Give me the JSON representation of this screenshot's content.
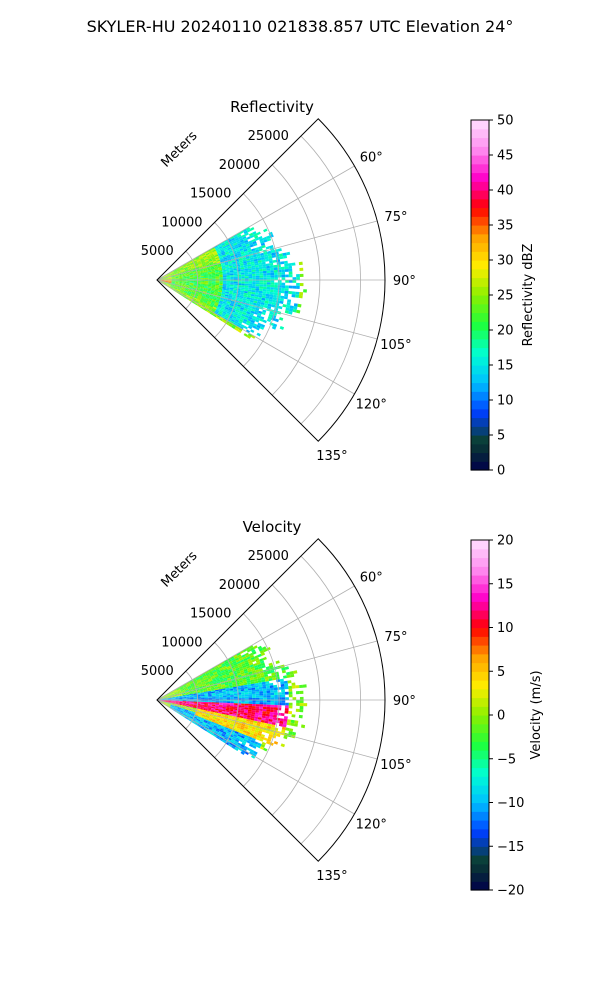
{
  "figure": {
    "suptitle": "SKYLER-HU  20240110  021838.857 UTC Elevation 24°"
  },
  "chart_data": [
    {
      "type": "heatmap",
      "subtype": "polar-sector",
      "title": "Reflectivity",
      "range_label": "Meters",
      "range_ticks": [
        5000,
        10000,
        15000,
        20000,
        25000
      ],
      "range_tick_labels": [
        "5000",
        "10000",
        "15000",
        "20000",
        "25000"
      ],
      "rmax": 28000,
      "azimuth_ticks": [
        60,
        75,
        90,
        105,
        120,
        135
      ],
      "azimuth_tick_labels": [
        "60°",
        "75°",
        "90°",
        "105°",
        "120°",
        "135°"
      ],
      "azimuth_range": [
        45,
        135
      ],
      "grid": true,
      "colorbar": {
        "label": "Reflectivity dBZ",
        "vmin": 0,
        "vmax": 50,
        "ticks": [
          0,
          5,
          10,
          15,
          20,
          25,
          30,
          35,
          40,
          45,
          50
        ],
        "tick_labels": [
          "0",
          "5",
          "10",
          "15",
          "20",
          "25",
          "30",
          "35",
          "40",
          "45",
          "50"
        ]
      },
      "colormap_stops": [
        "#00004a",
        "#0a4030",
        "#003fff",
        "#00bfff",
        "#00ffd2",
        "#1eff3c",
        "#8cf000",
        "#ffee00",
        "#ffa000",
        "#ff0000",
        "#ff00c8",
        "#ff8cf0",
        "#ffe0ff"
      ],
      "data_extent": {
        "azimuth": [
          60,
          122
        ],
        "range_m": [
          0,
          17500
        ]
      },
      "reflectivity_regions_dBZ": [
        {
          "azimuth": [
            60,
            120
          ],
          "range_m": [
            8000,
            17500
          ],
          "value": 15
        },
        {
          "azimuth": [
            75,
            115
          ],
          "range_m": [
            2000,
            10000
          ],
          "value": 22
        },
        {
          "azimuth": [
            88,
            102
          ],
          "range_m": [
            0,
            4000
          ],
          "value": 33
        }
      ]
    },
    {
      "type": "heatmap",
      "subtype": "polar-sector",
      "title": "Velocity",
      "range_label": "Meters",
      "range_ticks": [
        5000,
        10000,
        15000,
        20000,
        25000
      ],
      "range_tick_labels": [
        "5000",
        "10000",
        "15000",
        "20000",
        "25000"
      ],
      "rmax": 28000,
      "azimuth_ticks": [
        60,
        75,
        90,
        105,
        120,
        135
      ],
      "azimuth_tick_labels": [
        "60°",
        "75°",
        "90°",
        "105°",
        "120°",
        "135°"
      ],
      "azimuth_range": [
        45,
        135
      ],
      "grid": true,
      "colorbar": {
        "label": "Velocity (m/s)",
        "vmin": -20,
        "vmax": 20,
        "ticks": [
          -20,
          -15,
          -10,
          -5,
          0,
          5,
          10,
          15,
          20
        ],
        "tick_labels": [
          "−20",
          "−15",
          "−10",
          "−5",
          "0",
          "5",
          "10",
          "15",
          "20"
        ]
      },
      "colormap_stops": [
        "#00004a",
        "#0a4030",
        "#003fff",
        "#00bfff",
        "#00ffd2",
        "#1eff3c",
        "#8cf000",
        "#ffee00",
        "#ffa000",
        "#ff0000",
        "#ff00c8",
        "#ff8cf0",
        "#ffe0ff"
      ],
      "data_extent": {
        "azimuth": [
          60,
          122
        ],
        "range_m": [
          0,
          17500
        ]
      },
      "velocity_regions_ms": [
        {
          "azimuth": [
            60,
            80
          ],
          "range_m": [
            3000,
            17500
          ],
          "value": -2
        },
        {
          "azimuth": [
            80,
            92
          ],
          "range_m": [
            0,
            16000
          ],
          "value": -10
        },
        {
          "azimuth": [
            92,
            102
          ],
          "range_m": [
            0,
            16000
          ],
          "value": 12
        },
        {
          "azimuth": [
            102,
            112
          ],
          "range_m": [
            5000,
            16000
          ],
          "value": 4
        },
        {
          "azimuth": [
            108,
            122
          ],
          "range_m": [
            2000,
            14000
          ],
          "value": -10
        }
      ]
    }
  ]
}
